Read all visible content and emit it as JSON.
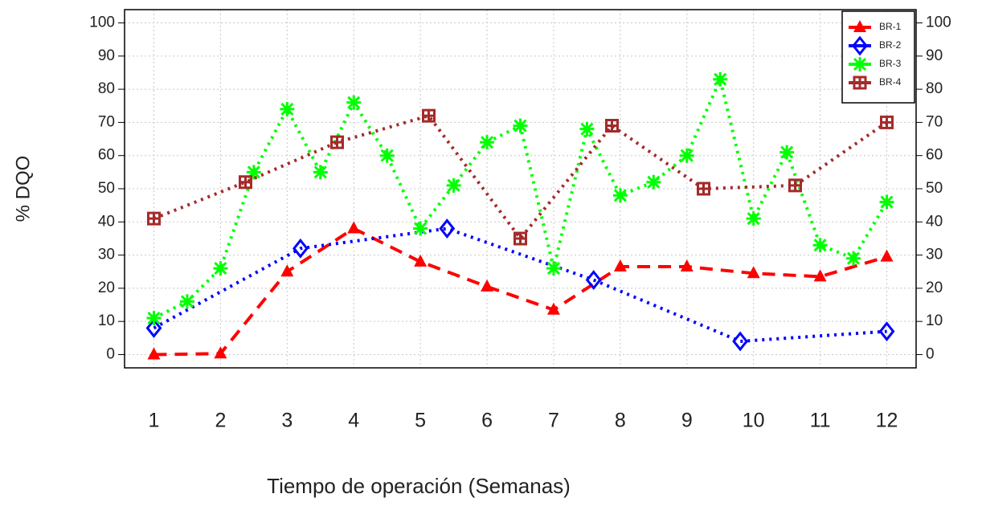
{
  "chart_data": {
    "type": "line",
    "xlabel": "Tiempo de operación (Semanas)",
    "ylabel": "% DQO",
    "xlim": [
      0.56,
      12.44
    ],
    "xticks": [
      1,
      2,
      3,
      4,
      5,
      6,
      7,
      8,
      9,
      10,
      11,
      12
    ],
    "ylim": [
      -4,
      104
    ],
    "yticks": [
      0,
      10,
      20,
      30,
      40,
      50,
      60,
      70,
      80,
      90,
      100
    ],
    "y2lim": [
      -4,
      104
    ],
    "y2ticks": [
      0,
      10,
      20,
      30,
      40,
      50,
      60,
      70,
      80,
      90,
      100
    ],
    "grid": true,
    "legend": "top-right",
    "series": [
      {
        "name": "BR-1",
        "color": "#ff0000",
        "marker": "triangle",
        "dash": "dashed",
        "x": [
          1,
          2,
          3,
          4,
          5,
          6,
          7,
          8,
          9,
          10,
          11,
          12
        ],
        "values": [
          0,
          0.3,
          25,
          38,
          28,
          20.5,
          13.5,
          26.5,
          26.5,
          24.5,
          23.5,
          29.5
        ]
      },
      {
        "name": "BR-2",
        "color": "#0000ff",
        "marker": "diamond",
        "dash": "dotted",
        "x": [
          1,
          3.2,
          5.4,
          7.6,
          9.8,
          12
        ],
        "values": [
          8,
          32,
          38,
          22.5,
          4,
          7
        ]
      },
      {
        "name": "BR-3",
        "color": "#00ff00",
        "marker": "asterisk",
        "dash": "dotted",
        "x": [
          1,
          1.5,
          2,
          2.5,
          3,
          3.5,
          4,
          4.5,
          5,
          5.5,
          6,
          6.5,
          7,
          7.5,
          8,
          8.5,
          9,
          9.5,
          10,
          10.5,
          11,
          11.5,
          12
        ],
        "values": [
          11,
          16,
          26,
          55,
          74,
          55,
          76,
          60,
          38,
          51,
          64,
          69,
          26,
          68,
          48,
          52,
          60,
          83,
          41,
          61,
          33,
          29,
          46
        ]
      },
      {
        "name": "BR-4",
        "color": "#a52a2a",
        "marker": "boxplus",
        "dash": "dotted",
        "x": [
          1,
          2.375,
          3.75,
          5.125,
          6.5,
          7.875,
          9.25,
          10.625,
          12
        ],
        "values": [
          41,
          52,
          64,
          72,
          35,
          69,
          50,
          51,
          70
        ]
      }
    ]
  }
}
